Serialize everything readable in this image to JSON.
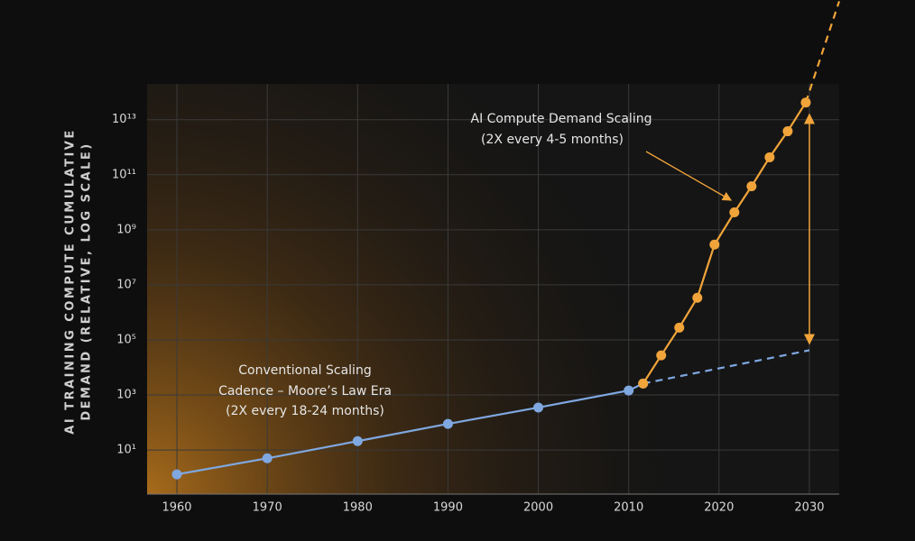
{
  "chart_data": {
    "type": "line",
    "ylabel": [
      "AI TRAINING COMPUTE CUMULATIVE",
      "DEMAND (RELATIVE, LOG SCALE)"
    ],
    "log_y": true,
    "grid": true,
    "xlim": [
      1956.7,
      2033.3
    ],
    "xticks": [
      1960,
      1970,
      1980,
      1990,
      2000,
      2010,
      2020,
      2030
    ],
    "ylim": [
      0.25,
      200000000000000.0
    ],
    "yticks": [
      {
        "value": 10,
        "label": "10¹"
      },
      {
        "value": 1000,
        "label": "10³"
      },
      {
        "value": 100000,
        "label": "10⁵"
      },
      {
        "value": 10000000,
        "label": "10⁷"
      },
      {
        "value": 1000000000,
        "label": "10⁹"
      },
      {
        "value": 100000000000,
        "label": "10¹¹"
      },
      {
        "value": 10000000000000,
        "label": "10¹³"
      }
    ],
    "series": [
      {
        "color": "#7fa7e0",
        "dashed": false,
        "markers": true,
        "x": [
          1960,
          1970,
          1980,
          1990,
          2000,
          2010,
          2011.6
        ],
        "values": [
          1.3,
          5,
          21,
          89,
          350,
          1450,
          2600
        ]
      },
      {
        "color": "#7fa7e0",
        "dashed": true,
        "markers": false,
        "x": [
          2011.6,
          2030
        ],
        "values": [
          2600,
          42000
        ]
      },
      {
        "color": "#f0a43a",
        "dashed": false,
        "markers": true,
        "x": [
          2011.6,
          2013.6,
          2015.6,
          2017.6,
          2019.5,
          2021.7,
          2023.6,
          2025.6,
          2027.6,
          2029.6
        ],
        "values": [
          2600,
          27500,
          280000,
          3400000,
          290000000,
          4300000000,
          38000000000,
          430000000000,
          3800000000000,
          42000000000000
        ]
      },
      {
        "color": "#f0a43a",
        "dashed": true,
        "markers": false,
        "x": [
          2029.6,
          2033.3
        ],
        "values": [
          42000000000000,
          200000000000000000
        ]
      }
    ],
    "annotations": [
      "AI Compute Demand Scaling",
      "(2X every 4-5 months)",
      "Conventional Scaling",
      "Cadence – Moore’s Law Era",
      "(2X every 18-24 months)"
    ]
  }
}
